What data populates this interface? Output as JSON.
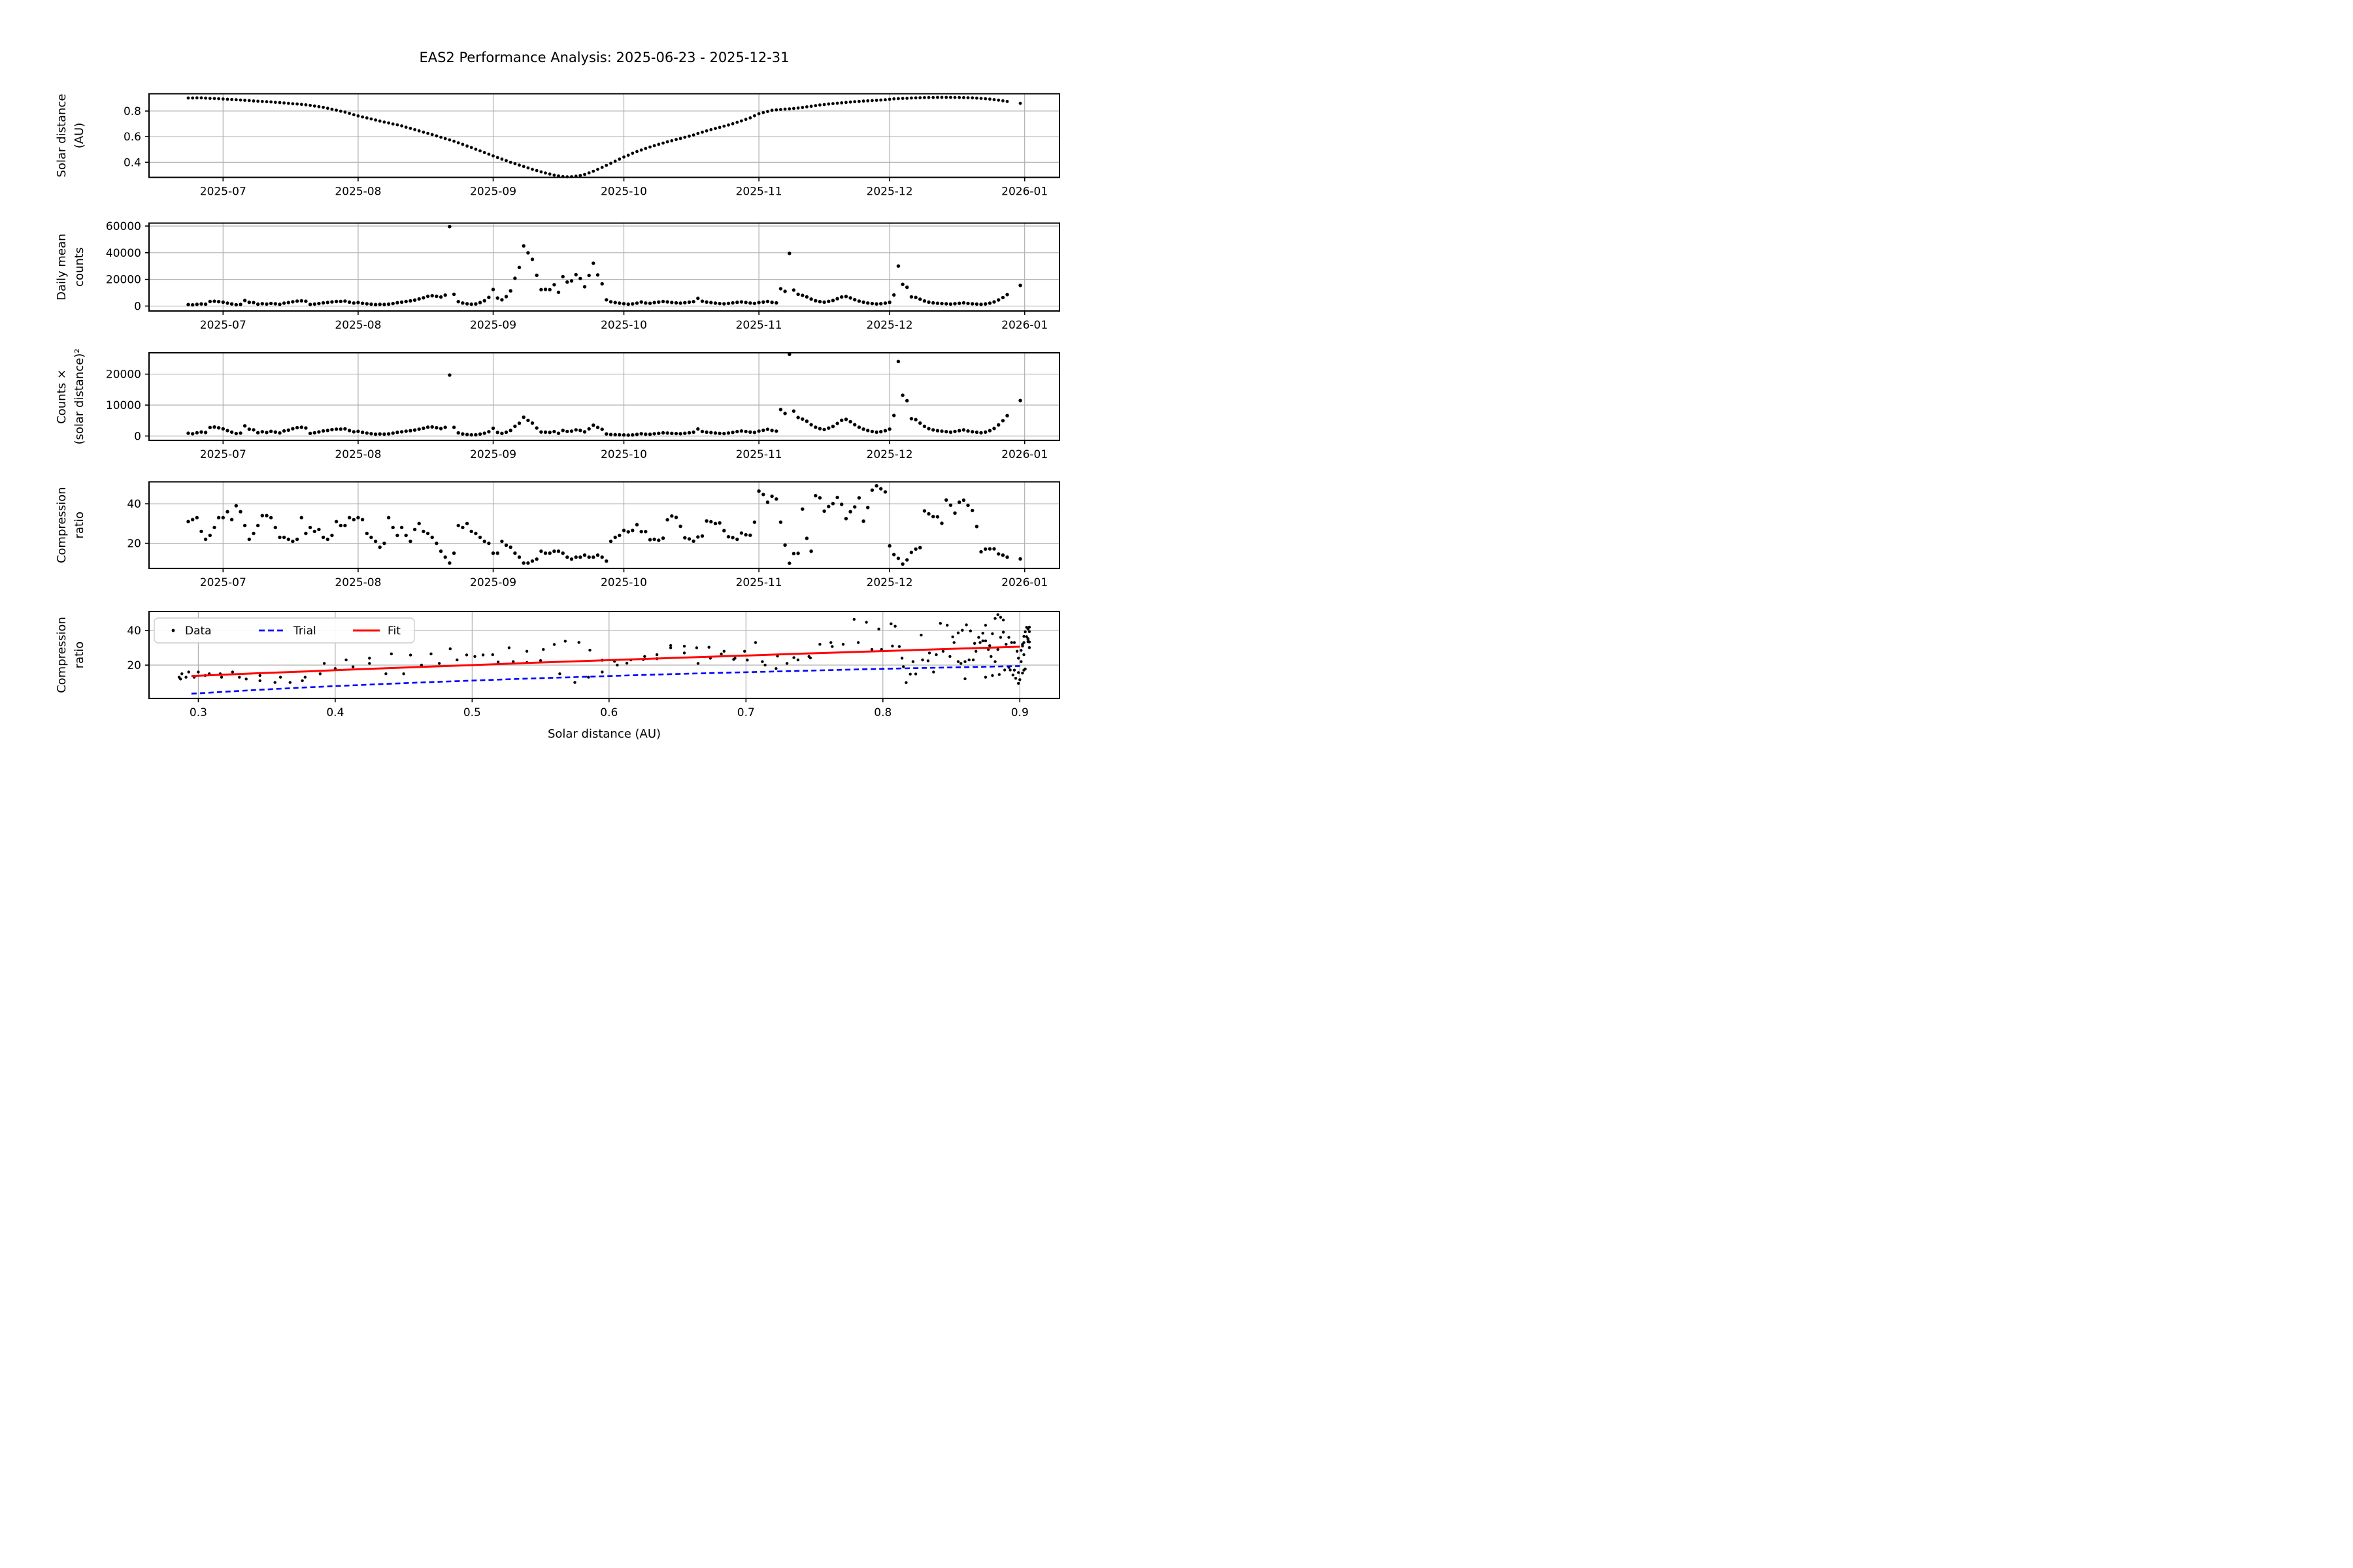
{
  "title": "EAS2 Performance Analysis: 2025-06-23 - 2025-12-31",
  "chart_data": {
    "type": "scatter",
    "time": {
      "start_date": "2025-06-23",
      "end_date": "2025-12-31",
      "n_days": 192,
      "xlim_days": [
        -9,
        200
      ],
      "tick_days": [
        8,
        39,
        70,
        100,
        131,
        161,
        192
      ],
      "tick_labels": [
        "2025-07",
        "2025-08",
        "2025-09",
        "2025-10",
        "2025-11",
        "2025-12",
        "2026-01"
      ]
    },
    "series": {
      "solar_distance_au": [
        0.902,
        0.902,
        0.903,
        0.903,
        0.901,
        0.899,
        0.898,
        0.896,
        0.894,
        0.892,
        0.89,
        0.888,
        0.886,
        0.884,
        0.882,
        0.879,
        0.877,
        0.875,
        0.873,
        0.871,
        0.868,
        0.866,
        0.863,
        0.86,
        0.857,
        0.855,
        0.852,
        0.849,
        0.844,
        0.839,
        0.834,
        0.829,
        0.822,
        0.814,
        0.807,
        0.799,
        0.792,
        0.782,
        0.771,
        0.762,
        0.754,
        0.746,
        0.738,
        0.73,
        0.722,
        0.714,
        0.707,
        0.699,
        0.692,
        0.684,
        0.674,
        0.665,
        0.655,
        0.645,
        0.635,
        0.626,
        0.616,
        0.606,
        0.595,
        0.585,
        0.575,
        0.564,
        0.552,
        0.54,
        0.527,
        0.515,
        0.502,
        0.489,
        0.476,
        0.463,
        0.45,
        0.437,
        0.425,
        0.413,
        0.4,
        0.389,
        0.378,
        0.367,
        0.356,
        0.345,
        0.335,
        0.325,
        0.316,
        0.308,
        0.3,
        0.293,
        0.288,
        0.286,
        0.287,
        0.291,
        0.297,
        0.305,
        0.317,
        0.33,
        0.345,
        0.36,
        0.376,
        0.392,
        0.408,
        0.425,
        0.441,
        0.455,
        0.47,
        0.484,
        0.496,
        0.508,
        0.519,
        0.53,
        0.54,
        0.55,
        0.56,
        0.568,
        0.578,
        0.586,
        0.595,
        0.604,
        0.613,
        0.625,
        0.635,
        0.645,
        0.655,
        0.664,
        0.673,
        0.682,
        0.691,
        0.701,
        0.712,
        0.723,
        0.735,
        0.747,
        0.763,
        0.779,
        0.788,
        0.797,
        0.806,
        0.809,
        0.812,
        0.815,
        0.817,
        0.82,
        0.824,
        0.828,
        0.833,
        0.837,
        0.842,
        0.847,
        0.851,
        0.855,
        0.858,
        0.861,
        0.864,
        0.867,
        0.87,
        0.873,
        0.875,
        0.878,
        0.88,
        0.882,
        0.884,
        0.886,
        0.888,
        0.892,
        0.895,
        0.897,
        0.899,
        0.9,
        0.902,
        0.903,
        0.904,
        0.905,
        0.906,
        0.906,
        0.907,
        0.907,
        0.907,
        0.907,
        0.906,
        0.906,
        0.905,
        0.904,
        0.903,
        0.901,
        0.899,
        0.896,
        0.893,
        0.889,
        0.885,
        0.88,
        0.875,
        null,
        null,
        0.86
      ],
      "daily_mean_counts": [
        1100,
        900,
        1300,
        1600,
        1400,
        3400,
        3600,
        3300,
        2900,
        2200,
        1600,
        1000,
        1200,
        4200,
        2800,
        2600,
        1400,
        1800,
        1500,
        2000,
        1700,
        1300,
        2200,
        2600,
        3200,
        3700,
        3900,
        3600,
        1200,
        1500,
        1900,
        2400,
        2700,
        3100,
        3400,
        3500,
        3700,
        2900,
        2300,
        2600,
        2100,
        1700,
        1400,
        1100,
        1300,
        1200,
        1400,
        1900,
        2500,
        2900,
        3400,
        3900,
        4500,
        5300,
        6200,
        7300,
        7700,
        7300,
        6800,
        8200,
        59600,
        8800,
        3300,
        2300,
        1700,
        1400,
        1600,
        2600,
        4000,
        6500,
        12400,
        6000,
        4700,
        7100,
        11400,
        20800,
        29000,
        45100,
        39900,
        35000,
        23100,
        12300,
        12450,
        12300,
        16000,
        10300,
        22000,
        18000,
        18850,
        23500,
        20650,
        14500,
        22950,
        32100,
        23350,
        16700,
        4700,
        3200,
        2600,
        2200,
        1800,
        1400,
        1650,
        2200,
        3050,
        2300,
        2100,
        2600,
        3000,
        3400,
        3100,
        2700,
        2400,
        2200,
        2500,
        2900,
        3300,
        5800,
        3600,
        3000,
        2600,
        2200,
        1900,
        1700,
        2000,
        2400,
        2800,
        3100,
        2700,
        2300,
        2000,
        2600,
        3000,
        3400,
        2800,
        2400,
        13000,
        11000,
        39500,
        12000,
        8800,
        8000,
        6900,
        5200,
        4000,
        3300,
        2900,
        3500,
        4200,
        5500,
        6800,
        7200,
        6100,
        4800,
        3700,
        2900,
        2300,
        1900,
        1600,
        1800,
        2200,
        2800,
        8300,
        30000,
        16300,
        14100,
        6900,
        6500,
        5100,
        3800,
        2900,
        2400,
        2100,
        1900,
        1700,
        1500,
        1800,
        2100,
        2400,
        2000,
        1700,
        1500,
        1300,
        1600,
        2200,
        3100,
        4600,
        6400,
        8600,
        null,
        null,
        15500
      ],
      "counts_x_solar_distance_sq": [
        900,
        730,
        1060,
        1300,
        1140,
        2750,
        2900,
        2650,
        2320,
        1750,
        1270,
        790,
        940,
        3280,
        2180,
        2010,
        1080,
        1380,
        1140,
        1520,
        1280,
        980,
        1640,
        1920,
        2350,
        2700,
        2830,
        2600,
        850,
        1050,
        1320,
        1650,
        1820,
        2060,
        2210,
        2240,
        2320,
        1770,
        1370,
        1510,
        1190,
        950,
        760,
        590,
        680,
        610,
        700,
        930,
        1200,
        1360,
        1550,
        1720,
        1940,
        2210,
        2500,
        2860,
        2920,
        2680,
        2410,
        2800,
        19700,
        2800,
        1010,
        670,
        470,
        370,
        400,
        620,
        910,
        1390,
        2510,
        1150,
        850,
        1210,
        1820,
        3150,
        4140,
        6080,
        5060,
        4170,
        2590,
        1300,
        1240,
        1170,
        1440,
        880,
        1820,
        1470,
        1550,
        1990,
        1820,
        1350,
        2310,
        3500,
        2780,
        2160,
        660,
        490,
        430,
        400,
        350,
        290,
        360,
        520,
        750,
        590,
        570,
        730,
        870,
        1030,
        970,
        870,
        800,
        760,
        890,
        1060,
        1240,
        2270,
        1450,
        1250,
        1120,
        970,
        860,
        790,
        960,
        1180,
        1420,
        1620,
        1460,
        1280,
        1160,
        1580,
        1860,
        2160,
        1820,
        1570,
        8570,
        7310,
        26400,
        8070,
        5980,
        5480,
        4790,
        3640,
        2840,
        2370,
        2100,
        2560,
        3090,
        4080,
        5080,
        5410,
        4620,
        3660,
        2830,
        2240,
        1780,
        1480,
        1250,
        1410,
        1730,
        2230,
        6650,
        24100,
        13170,
        11420,
        5610,
        5300,
        4170,
        3110,
        2380,
        1970,
        1730,
        1560,
        1400,
        1230,
        1480,
        1720,
        1970,
        1630,
        1390,
        1220,
        1050,
        1280,
        1750,
        2450,
        3600,
        4960,
        6580,
        null,
        null,
        11460
      ],
      "compression_ratio": [
        31,
        32,
        33,
        26,
        22,
        24,
        28,
        33,
        33,
        36,
        32,
        39,
        36,
        29,
        22,
        25,
        29,
        34,
        34,
        33,
        28,
        23,
        23,
        22,
        21,
        22,
        33,
        25,
        28,
        26,
        27,
        23,
        22,
        24,
        31,
        29,
        29,
        33,
        32,
        33,
        32,
        25,
        23,
        21,
        18,
        20,
        33,
        28,
        24,
        28,
        24,
        21,
        27,
        30,
        26,
        25,
        23,
        20,
        16,
        13,
        10,
        15,
        29,
        28,
        30,
        26,
        25,
        23,
        21,
        20,
        15,
        15,
        21,
        19,
        18,
        15,
        13,
        10,
        10,
        11,
        12,
        16,
        15,
        15,
        16,
        16,
        15,
        13,
        12,
        13,
        13,
        14,
        13,
        13,
        14,
        13,
        11,
        21,
        23,
        24,
        26.5,
        25.8,
        26.5,
        29.4,
        25.9,
        25.9,
        21.8,
        22,
        21.5,
        22.6,
        31.9,
        33.8,
        33.1,
        28.6,
        22.8,
        22.2,
        21.1,
        23.2,
        23.7,
        31.3,
        30.9,
        30,
        30.3,
        26.4,
        23.3,
        22.9,
        22,
        25.2,
        24.3,
        24.1,
        30.7,
        46.4,
        44.7,
        40.8,
        43.8,
        42.4,
        30.7,
        19.1,
        9.9,
        14.8,
        14.9,
        37.3,
        22.5,
        16,
        44.1,
        43,
        36.3,
        38.6,
        40.1,
        43.2,
        39.7,
        32.5,
        36,
        38.4,
        43,
        31.2,
        38.1,
        46.9,
        49.1,
        47.6,
        46,
        18.7,
        14.3,
        12.4,
        9.5,
        11.6,
        15.4,
        17.1,
        17.8,
        36.4,
        34.9,
        33.5,
        33.4,
        30.1,
        41.9,
        39.3,
        35.3,
        40.8,
        41.8,
        39.2,
        36.6,
        28.5,
        15.7,
        17.1,
        17.2,
        17.2,
        14.6,
        14,
        13,
        null,
        null,
        12.1
      ]
    },
    "panels": [
      {
        "id": "solar-distance",
        "ylabel_lines": [
          "Solar distance",
          "(AU)"
        ],
        "x": "time",
        "series": "solar_distance_au",
        "ylim": [
          0.282,
          0.935
        ],
        "yticks": [
          0.4,
          0.6,
          0.8
        ],
        "ytick_labels": [
          "0.4",
          "0.6",
          "0.8"
        ],
        "marker_r": 2.4
      },
      {
        "id": "daily-mean-counts",
        "ylabel_lines": [
          "Daily mean",
          "counts"
        ],
        "x": "time",
        "series": "daily_mean_counts",
        "ylim": [
          -3700,
          62200
        ],
        "yticks": [
          0,
          20000,
          40000,
          60000
        ],
        "ytick_labels": [
          "0",
          "20000",
          "40000",
          "60000"
        ],
        "marker_r": 2.7
      },
      {
        "id": "counts-times-r2",
        "ylabel_lines": [
          "Counts ×",
          "(solar distance)²"
        ],
        "x": "time",
        "series": "counts_x_solar_distance_sq",
        "ylim": [
          -1400,
          26900
        ],
        "yticks": [
          0,
          10000,
          20000
        ],
        "ytick_labels": [
          "0",
          "10000",
          "20000"
        ],
        "marker_r": 2.7
      },
      {
        "id": "compression-ratio-time",
        "ylabel_lines": [
          "Compression",
          "ratio"
        ],
        "x": "time",
        "series": "compression_ratio",
        "ylim": [
          7.3,
          51.1
        ],
        "yticks": [
          20,
          40
        ],
        "ytick_labels": [
          "20",
          "40"
        ],
        "marker_r": 2.7
      },
      {
        "id": "compression-vs-distance",
        "ylabel_lines": [
          "Compression",
          "ratio"
        ],
        "x": "au",
        "x_series": "solar_distance_au",
        "y_series": "compression_ratio",
        "xlabel": "Solar distance (AU)",
        "xlim": [
          0.264,
          0.929
        ],
        "xticks": [
          0.3,
          0.4,
          0.5,
          0.6,
          0.7,
          0.8,
          0.9
        ],
        "xtick_labels": [
          "0.3",
          "0.4",
          "0.5",
          "0.6",
          "0.7",
          "0.8",
          "0.9"
        ],
        "ylim": [
          0.8,
          50.9
        ],
        "yticks": [
          20,
          40
        ],
        "ytick_labels": [
          "20",
          "40"
        ],
        "marker_r": 2.2,
        "fit_x": [
          0.295,
          0.34,
          0.38,
          0.42,
          0.46,
          0.5,
          0.54,
          0.58,
          0.62,
          0.66,
          0.7,
          0.74,
          0.78,
          0.82,
          0.86,
          0.9
        ],
        "fit_y": [
          13.7,
          15.2,
          16.4,
          17.7,
          18.9,
          20.0,
          21.2,
          22.3,
          23.4,
          24.5,
          25.5,
          26.6,
          27.6,
          28.6,
          29.6,
          30.6
        ],
        "trial_y": [
          3.5,
          5.6,
          7.2,
          8.6,
          9.9,
          11.1,
          12.2,
          13.2,
          14.2,
          15.1,
          15.9,
          16.7,
          17.5,
          18.2,
          18.8,
          19.5
        ],
        "legend": {
          "entries": [
            {
              "label": "Data",
              "type": "marker",
              "color": "#000000"
            },
            {
              "label": "Trial",
              "type": "dashed",
              "color": "#0000ff"
            },
            {
              "label": "Fit",
              "type": "solid",
              "color": "#ff0000"
            }
          ]
        }
      }
    ],
    "colors": {
      "marker": "#000000",
      "grid": "#b0b0b0",
      "spine": "#000000",
      "trial": "#0000ff",
      "fit": "#ff0000"
    },
    "layout_hints": {
      "grid": true,
      "legend_position": "upper left of bottom panel"
    }
  }
}
